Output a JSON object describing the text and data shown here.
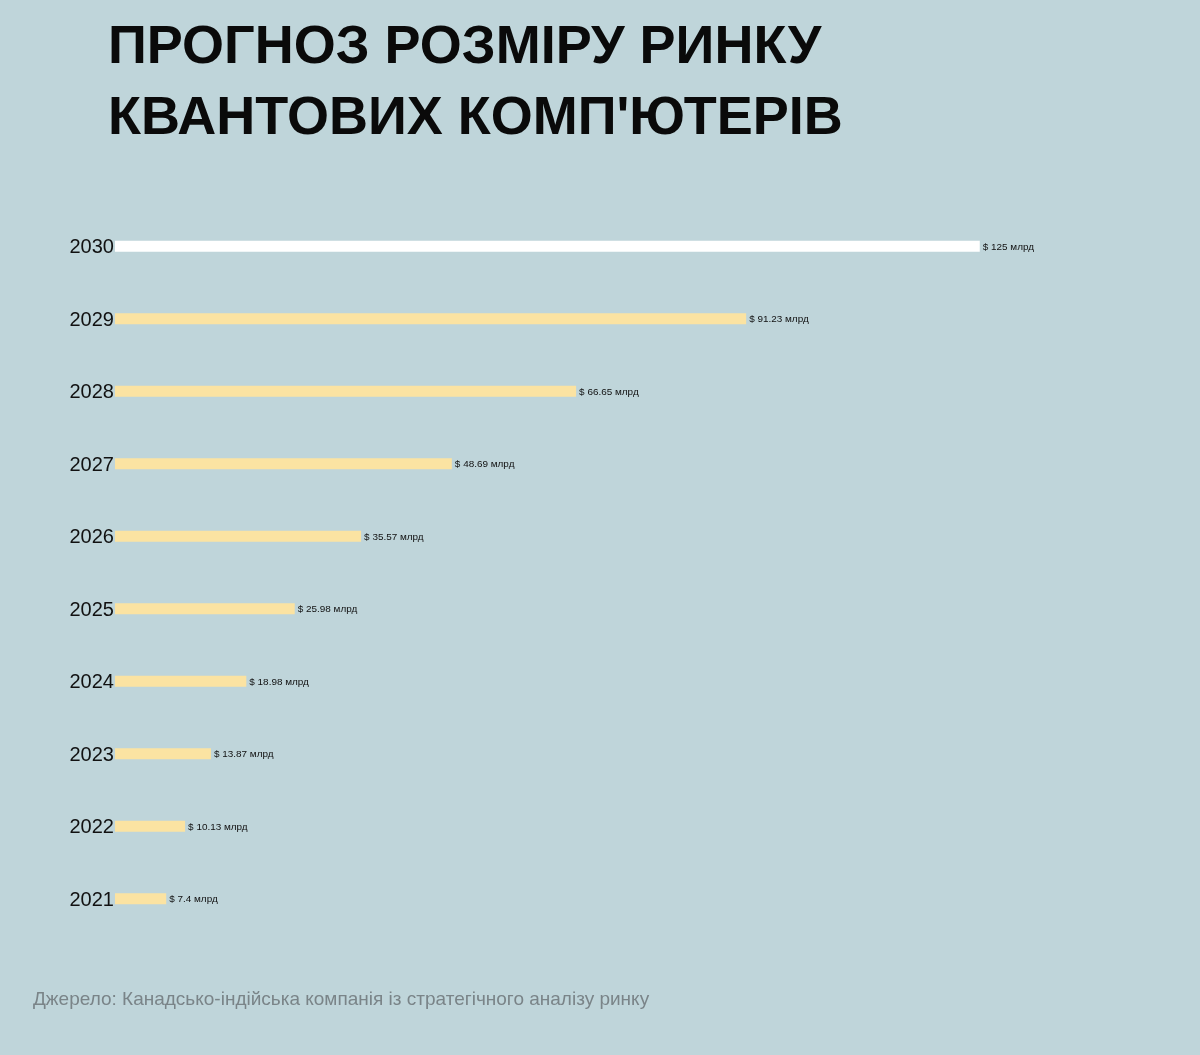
{
  "chart_data": {
    "type": "bar",
    "orientation": "horizontal",
    "title": "ПРОГНОЗ РОЗМІРУ РИНКУ\nКВАНТОВИХ КОМП'ЮТЕРІВ",
    "categories": [
      "2030",
      "2029",
      "2028",
      "2027",
      "2026",
      "2025",
      "2024",
      "2023",
      "2022",
      "2021"
    ],
    "values": [
      125,
      91.23,
      66.65,
      48.69,
      35.57,
      25.98,
      18.98,
      13.87,
      10.13,
      7.4
    ],
    "value_labels": [
      "$ 125 млрд",
      "$ 91.23 млрд",
      "$ 66.65 млрд",
      "$ 48.69 млрд",
      "$ 35.57 млрд",
      "$ 25.98 млрд",
      "$ 18.98 млрд",
      "$ 13.87 млрд",
      "$ 10.13 млрд",
      "$ 7.4 млрд"
    ],
    "colors": [
      "#ffffff",
      "#fbe3a2",
      "#fbe3a2",
      "#fbe3a2",
      "#fbe3a2",
      "#fbe3a2",
      "#fbe3a2",
      "#fbe3a2",
      "#fbe3a2",
      "#fbe3a2"
    ],
    "tick_labels": "y",
    "grid": false,
    "legend": false,
    "annotations": [
      "Джерело: Канадсько-індійська компанія із стратегічного аналізу ринку"
    ]
  }
}
